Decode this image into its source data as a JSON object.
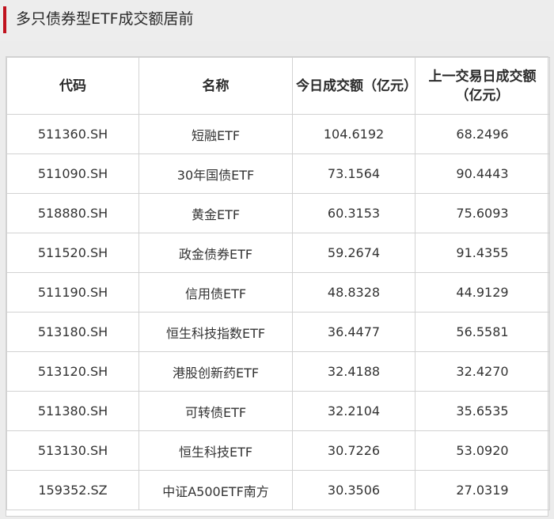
{
  "title": "多只债券型ETF成交额居前",
  "colors": {
    "accent": "#c0121e",
    "background": "#ececec",
    "table_bg": "#ffffff",
    "border": "#d2d2d2"
  },
  "table": {
    "headers": [
      "代码",
      "名称",
      "今日成交额（亿元）",
      "上一交易日成交额（亿元）"
    ],
    "rows": [
      [
        "511360.SH",
        "短融ETF",
        "104.6192",
        "68.2496"
      ],
      [
        "511090.SH",
        "30年国债ETF",
        "73.1564",
        "90.4443"
      ],
      [
        "518880.SH",
        "黄金ETF",
        "60.3153",
        "75.6093"
      ],
      [
        "511520.SH",
        "政金债券ETF",
        "59.2674",
        "91.4355"
      ],
      [
        "511190.SH",
        "信用债ETF",
        "48.8328",
        "44.9129"
      ],
      [
        "513180.SH",
        "恒生科技指数ETF",
        "36.4477",
        "56.5581"
      ],
      [
        "513120.SH",
        "港股创新药ETF",
        "32.4188",
        "32.4270"
      ],
      [
        "511380.SH",
        "可转债ETF",
        "32.2104",
        "35.6535"
      ],
      [
        "513130.SH",
        "恒生科技ETF",
        "30.7226",
        "53.0920"
      ],
      [
        "159352.SZ",
        "中证A500ETF南方",
        "30.3506",
        "27.0319"
      ]
    ]
  }
}
